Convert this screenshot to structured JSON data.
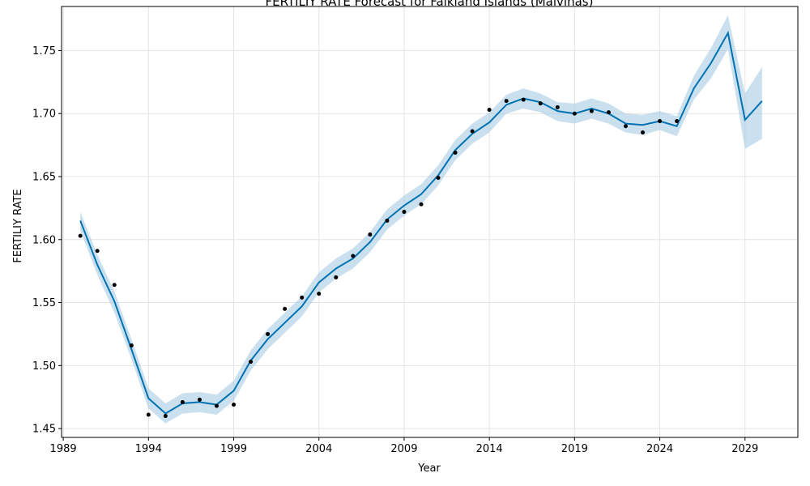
{
  "chart_data": {
    "type": "line",
    "title": "FERTILIY RATE Forecast for Falkland Islands (Malvinas)",
    "xlabel": "Year",
    "ylabel": "FERTILIY RATE",
    "xlim": [
      1988.9,
      2032.1
    ],
    "ylim": [
      1.443,
      1.785
    ],
    "x_ticks": [
      1989,
      1994,
      1999,
      2004,
      2009,
      2014,
      2019,
      2024,
      2029
    ],
    "y_ticks": [
      "1.45",
      "1.50",
      "1.55",
      "1.60",
      "1.65",
      "1.70",
      "1.75"
    ],
    "grid": true,
    "colors": {
      "forecast": "#0072B2",
      "band": "#a6cbe3",
      "observed": "#000000"
    },
    "observed": {
      "x": [
        1990,
        1991,
        1992,
        1993,
        1994,
        1995,
        1996,
        1997,
        1998,
        1999,
        2000,
        2001,
        2002,
        2003,
        2004,
        2005,
        2006,
        2007,
        2008,
        2009,
        2010,
        2011,
        2012,
        2013,
        2014,
        2015,
        2016,
        2017,
        2018,
        2019,
        2020,
        2021,
        2022,
        2023,
        2024,
        2025
      ],
      "y": [
        1.603,
        1.591,
        1.564,
        1.516,
        1.461,
        1.46,
        1.471,
        1.473,
        1.468,
        1.469,
        1.503,
        1.525,
        1.545,
        1.554,
        1.557,
        1.57,
        1.587,
        1.604,
        1.615,
        1.622,
        1.628,
        1.649,
        1.669,
        1.686,
        1.703,
        1.71,
        1.711,
        1.708,
        1.705,
        1.7,
        1.702,
        1.701,
        1.69,
        1.685,
        1.694,
        1.694
      ]
    },
    "forecast": {
      "x": [
        1990,
        1991,
        1992,
        1993,
        1994,
        1995,
        1996,
        1997,
        1998,
        1999,
        2000,
        2001,
        2002,
        2003,
        2004,
        2005,
        2006,
        2007,
        2008,
        2009,
        2010,
        2011,
        2012,
        2013,
        2014,
        2015,
        2016,
        2017,
        2018,
        2019,
        2020,
        2021,
        2022,
        2023,
        2024,
        2025,
        2026,
        2027,
        2028,
        2029,
        2030
      ],
      "yhat": [
        1.615,
        1.58,
        1.551,
        1.513,
        1.474,
        1.462,
        1.47,
        1.471,
        1.469,
        1.48,
        1.504,
        1.521,
        1.534,
        1.547,
        1.566,
        1.577,
        1.585,
        1.598,
        1.616,
        1.627,
        1.636,
        1.651,
        1.671,
        1.684,
        1.693,
        1.707,
        1.712,
        1.709,
        1.702,
        1.7,
        1.704,
        1.7,
        1.692,
        1.691,
        1.694,
        1.69,
        1.72,
        1.74,
        1.764,
        1.695,
        1.71
      ],
      "lower": [
        1.607,
        1.572,
        1.542,
        1.505,
        1.466,
        1.454,
        1.462,
        1.463,
        1.461,
        1.472,
        1.496,
        1.513,
        1.526,
        1.539,
        1.558,
        1.569,
        1.577,
        1.59,
        1.608,
        1.619,
        1.628,
        1.643,
        1.663,
        1.676,
        1.685,
        1.7,
        1.704,
        1.701,
        1.694,
        1.692,
        1.696,
        1.692,
        1.685,
        1.683,
        1.687,
        1.682,
        1.711,
        1.728,
        1.751,
        1.672,
        1.68
      ],
      "upper": [
        1.622,
        1.588,
        1.559,
        1.521,
        1.482,
        1.47,
        1.478,
        1.479,
        1.477,
        1.488,
        1.512,
        1.529,
        1.542,
        1.555,
        1.574,
        1.585,
        1.593,
        1.606,
        1.624,
        1.635,
        1.644,
        1.659,
        1.679,
        1.692,
        1.701,
        1.715,
        1.72,
        1.716,
        1.709,
        1.708,
        1.712,
        1.708,
        1.7,
        1.699,
        1.702,
        1.698,
        1.73,
        1.752,
        1.778,
        1.716,
        1.737
      ]
    }
  }
}
